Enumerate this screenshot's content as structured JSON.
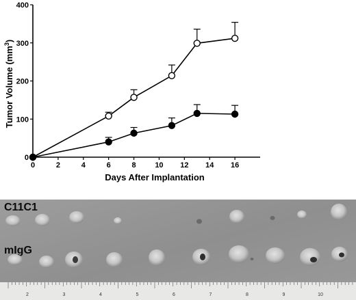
{
  "chart_data": {
    "type": "line",
    "xlabel": "Days After Implantation",
    "ylabel": "Tumor Volume (mm",
    "ylabel_superscript": "3",
    "ylabel_close": ")",
    "xlim": [
      0,
      18
    ],
    "ylim": [
      0,
      400
    ],
    "xticks": [
      0,
      2,
      4,
      6,
      8,
      10,
      12,
      14,
      16
    ],
    "yticks": [
      0,
      100,
      200,
      300,
      400
    ],
    "grid": false,
    "series": [
      {
        "marker": "open-circle",
        "x": [
          0,
          6,
          8,
          11,
          13,
          16
        ],
        "y": [
          0,
          108,
          157,
          214,
          299,
          312
        ],
        "err": [
          0,
          10,
          20,
          28,
          37,
          42
        ]
      },
      {
        "marker": "filled-circle",
        "x": [
          0,
          6,
          8,
          11,
          13,
          16
        ],
        "y": [
          0,
          40,
          63,
          83,
          115,
          113
        ],
        "err": [
          0,
          12,
          15,
          20,
          23,
          23
        ]
      }
    ]
  },
  "photo": {
    "row1_label": "C11C1",
    "row2_label": "mIgG",
    "ruler_numbers": [
      "2",
      "3",
      "4",
      "5",
      "6",
      "7",
      "8",
      "9",
      "10"
    ]
  }
}
